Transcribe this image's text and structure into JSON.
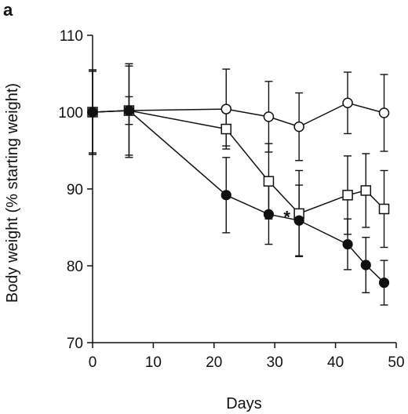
{
  "chart_data": {
    "type": "line",
    "panel_label": "a",
    "title": "",
    "xlabel": "Days",
    "ylabel": "Body weight (% starting weight)",
    "xlim": [
      0,
      50
    ],
    "ylim": [
      70,
      110
    ],
    "xticks": [
      "0",
      "10",
      "20",
      "30",
      "40",
      "50"
    ],
    "yticks": [
      "70",
      "80",
      "90",
      "100",
      "110"
    ],
    "grid": false,
    "legend": "none",
    "annotations": [
      {
        "text": "*",
        "x": 32,
        "y": 86.8
      }
    ],
    "series": [
      {
        "marker": "open-circle",
        "x": [
          0,
          6,
          22,
          29,
          34,
          42,
          48
        ],
        "y": [
          100,
          100.2,
          100.4,
          99.4,
          98.1,
          101.2,
          99.9
        ],
        "err": [
          5.5,
          5.8,
          5.2,
          4.6,
          4.4,
          4.0,
          5.0
        ]
      },
      {
        "marker": "open-square",
        "x": [
          0,
          6,
          22,
          29,
          34,
          42,
          45,
          48
        ],
        "y": [
          100,
          100.2,
          97.8,
          91.0,
          86.8,
          89.2,
          89.8,
          87.4
        ],
        "err": [
          5.3,
          1.8,
          2.2,
          4.9,
          5.6,
          5.1,
          4.8,
          5.0
        ]
      },
      {
        "marker": "filled-circle",
        "x": [
          0,
          6,
          22,
          29,
          34,
          42,
          45,
          48
        ],
        "y": [
          100,
          100.2,
          89.2,
          86.7,
          85.9,
          82.8,
          80.1,
          77.8
        ],
        "err": [
          5.5,
          6.1,
          4.9,
          3.9,
          4.6,
          3.3,
          3.6,
          2.9
        ]
      }
    ]
  }
}
